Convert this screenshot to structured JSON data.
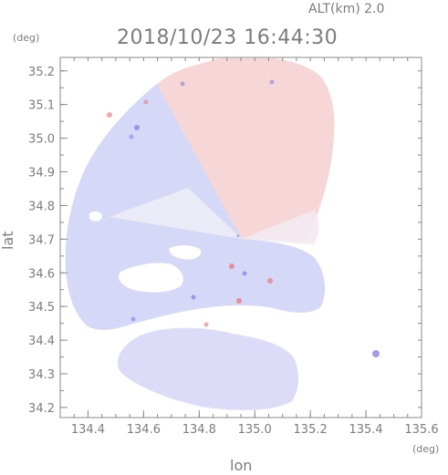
{
  "chart_data": {
    "type": "heatmap",
    "title": "2018/10/23 16:44:30",
    "altitude_label": "ALT(km)  2.0",
    "xlabel": "lon",
    "ylabel": "lat",
    "x_unit": "(deg)",
    "y_unit": "(deg)",
    "xlim": [
      134.3,
      135.6
    ],
    "ylim": [
      34.17,
      35.24
    ],
    "x_ticks": [
      "134.4",
      "134.6",
      "134.8",
      "135.0",
      "135.2",
      "135.4",
      "135.6"
    ],
    "y_ticks": [
      "34.2",
      "34.3",
      "34.4",
      "34.5",
      "34.6",
      "34.7",
      "34.8",
      "34.9",
      "35.0",
      "35.1",
      "35.2"
    ],
    "radar_center": {
      "lon": 134.94,
      "lat": 34.71
    },
    "colors": {
      "toward_negative": "#dcdcf8",
      "away_positive": "#f8dada",
      "strong_negative": "#7070e0",
      "strong_positive": "#e86060",
      "frame": "#888888"
    }
  }
}
